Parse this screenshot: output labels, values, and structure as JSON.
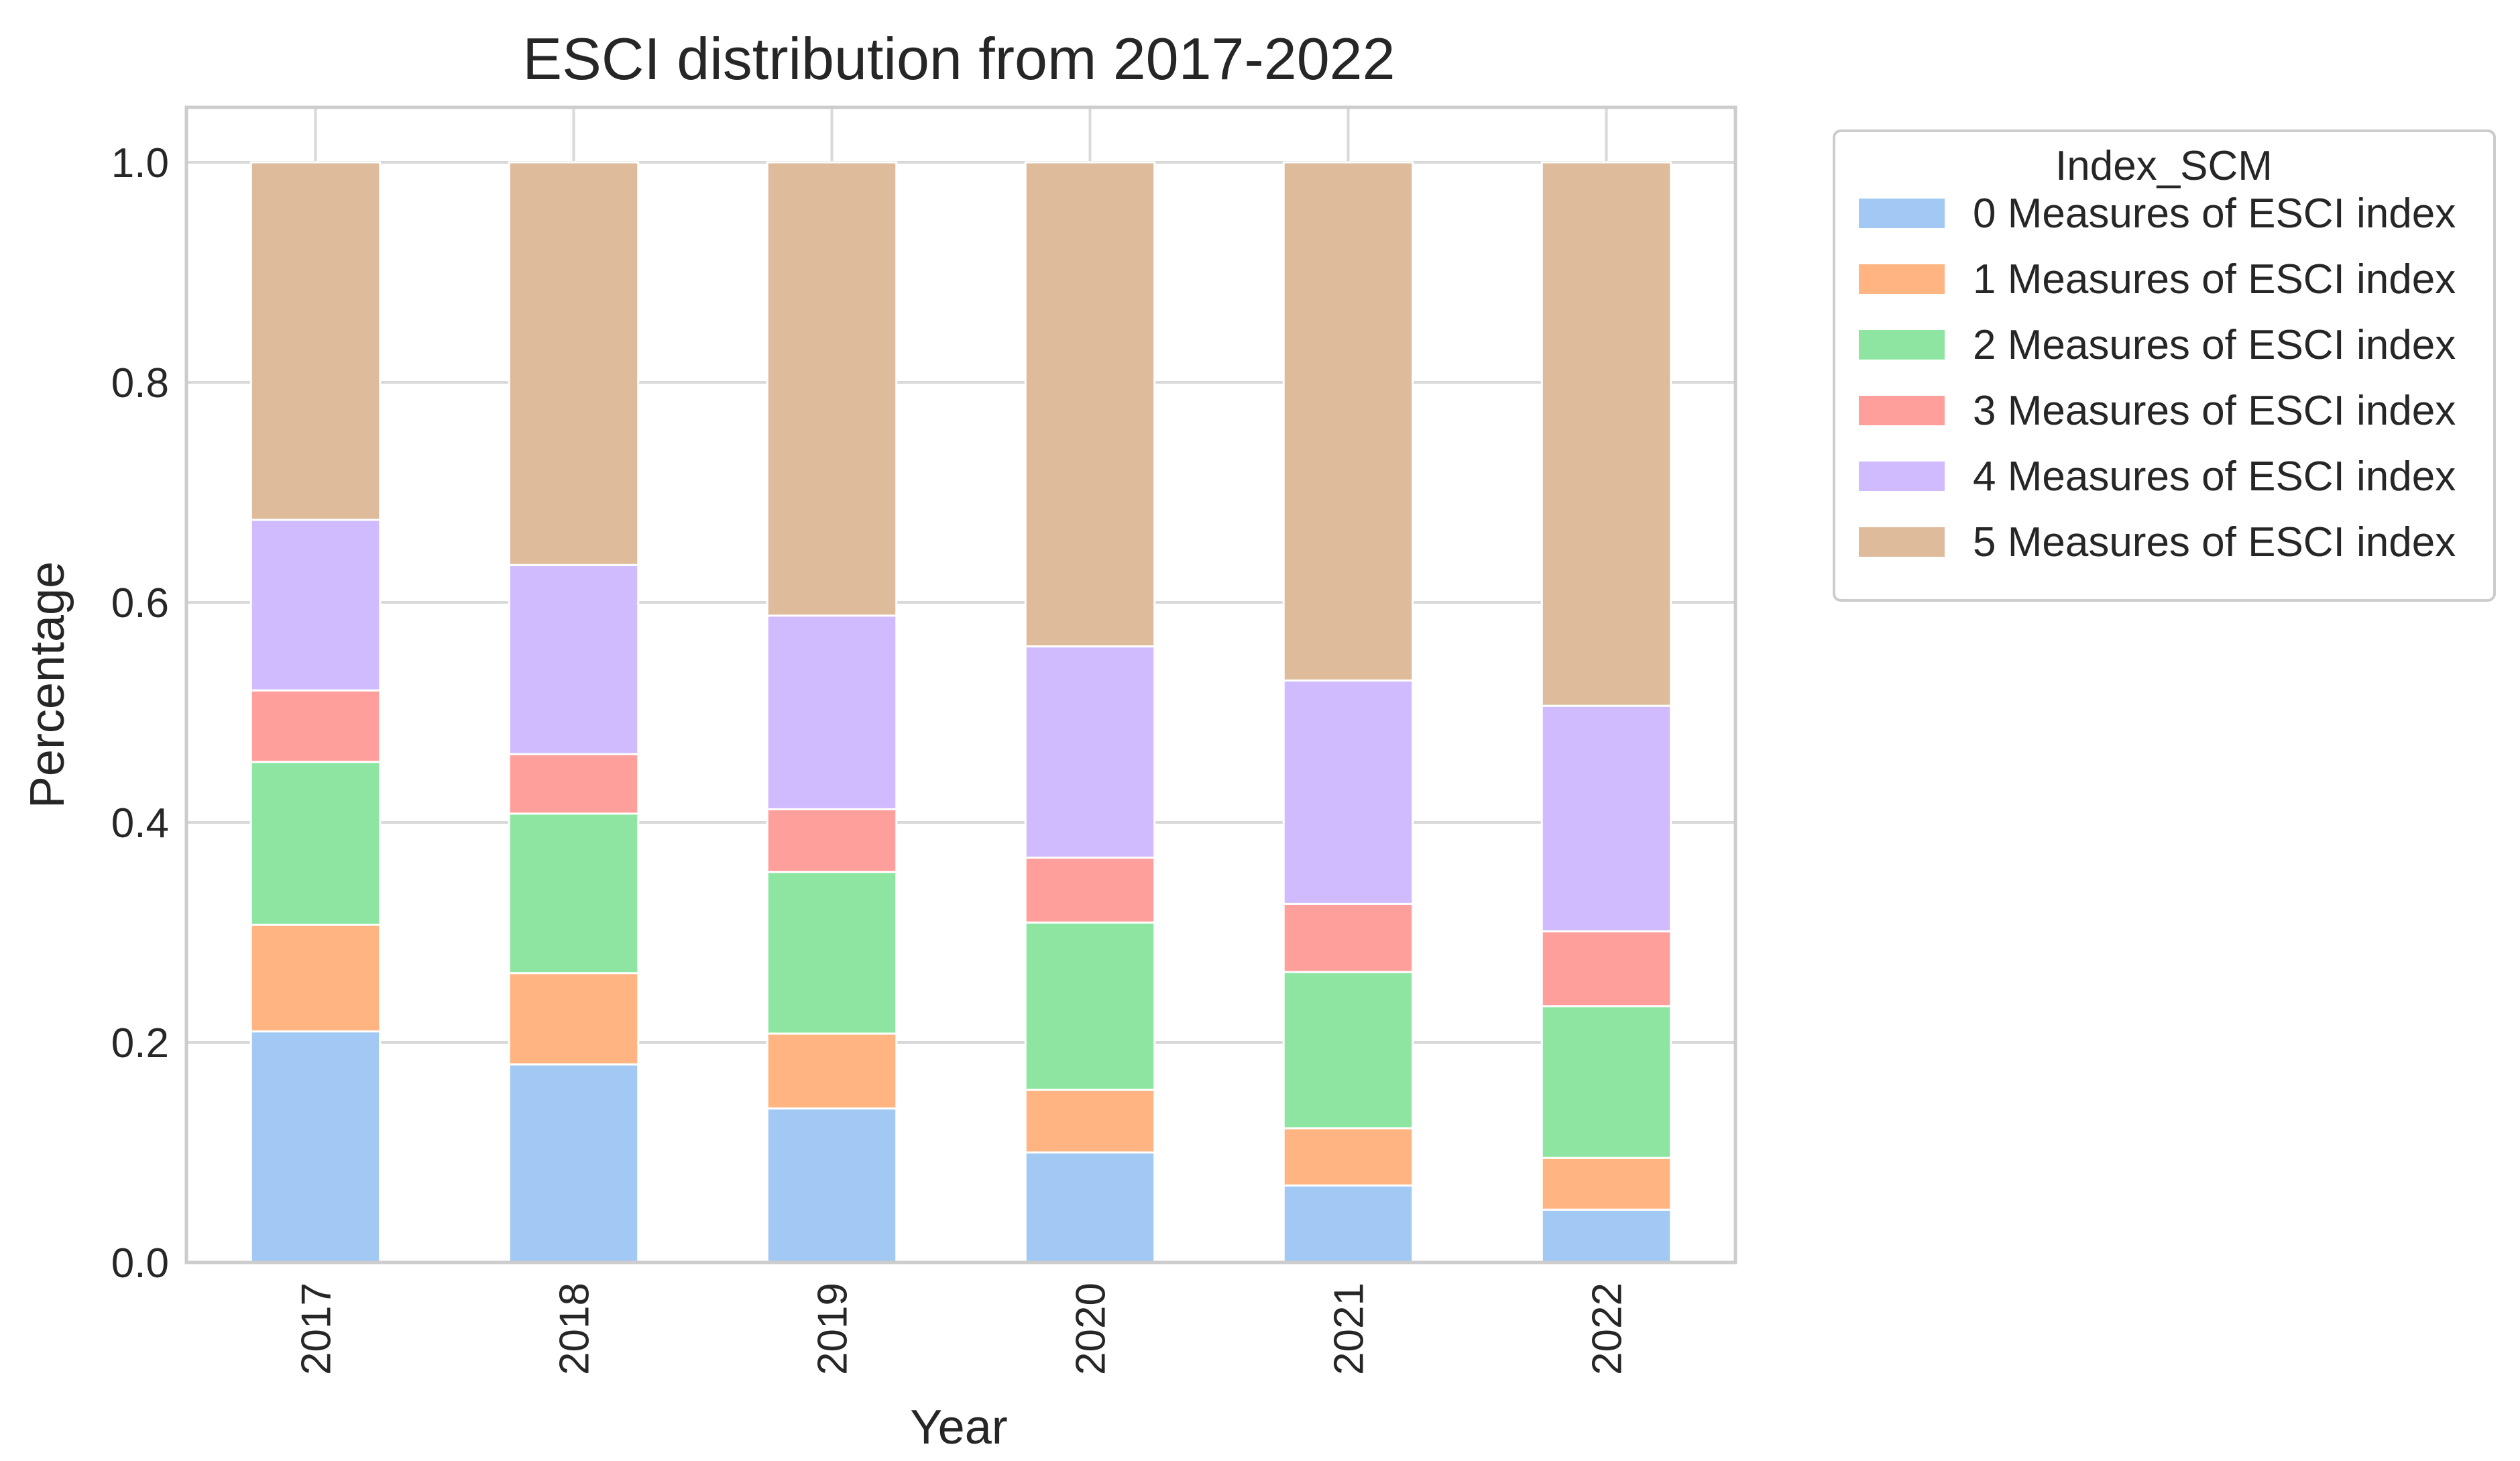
{
  "chart_data": {
    "type": "bar",
    "stacked": true,
    "title": "ESCI distribution from 2017-2022",
    "xlabel": "Year",
    "ylabel": "Percentage",
    "ylim": [
      0,
      1.05
    ],
    "yticks": [
      0.0,
      0.2,
      0.4,
      0.6,
      0.8,
      1.0
    ],
    "ytick_labels": [
      "0.0",
      "0.2",
      "0.4",
      "0.6",
      "0.8",
      "1.0"
    ],
    "grid": true,
    "categories": [
      "2017",
      "2018",
      "2019",
      "2020",
      "2021",
      "2022"
    ],
    "legend": {
      "title": "Index_SCM",
      "placement": "outside-top-right"
    },
    "series": [
      {
        "name": "0 Measures of ESCI index",
        "color": "#a1c9f4",
        "values": [
          0.21,
          0.18,
          0.14,
          0.1,
          0.07,
          0.048
        ]
      },
      {
        "name": "1 Measures of ESCI index",
        "color": "#ffb482",
        "values": [
          0.097,
          0.083,
          0.068,
          0.057,
          0.052,
          0.047
        ]
      },
      {
        "name": "2 Measures of ESCI index",
        "color": "#8de5a1",
        "values": [
          0.148,
          0.145,
          0.147,
          0.152,
          0.142,
          0.138
        ]
      },
      {
        "name": "3 Measures of ESCI index",
        "color": "#ff9f9b",
        "values": [
          0.065,
          0.054,
          0.057,
          0.059,
          0.062,
          0.068
        ]
      },
      {
        "name": "4 Measures of ESCI index",
        "color": "#d0bbff",
        "values": [
          0.155,
          0.172,
          0.176,
          0.192,
          0.203,
          0.205
        ]
      },
      {
        "name": "5 Measures of ESCI index",
        "color": "#debb9b",
        "values": [
          0.325,
          0.366,
          0.412,
          0.44,
          0.471,
          0.494
        ]
      }
    ]
  }
}
